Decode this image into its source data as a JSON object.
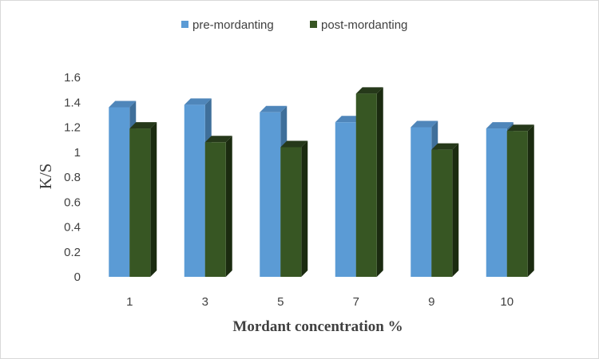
{
  "chart_data": {
    "type": "bar",
    "categories": [
      "1",
      "3",
      "5",
      "7",
      "9",
      "10"
    ],
    "series": [
      {
        "name": "pre-mordanting",
        "values": [
          1.36,
          1.38,
          1.32,
          1.24,
          1.2,
          1.19
        ],
        "color": "#5b9bd5"
      },
      {
        "name": "post-mordanting",
        "values": [
          1.19,
          1.08,
          1.04,
          1.47,
          1.02,
          1.17
        ],
        "color": "#375623"
      }
    ],
    "xlabel": "Mordant concentration %",
    "ylabel": "K/S",
    "ylim": [
      0,
      1.6
    ],
    "yticks": [
      "0",
      "0.2",
      "0.4",
      "0.6",
      "0.8",
      "1",
      "1.2",
      "1.4",
      "1.6"
    ],
    "ytick_values": [
      0,
      0.2,
      0.4,
      0.6,
      0.8,
      1.0,
      1.2,
      1.4,
      1.6
    ],
    "grid": false,
    "legend_position": "top-center",
    "style": "3d-clustered-column"
  }
}
